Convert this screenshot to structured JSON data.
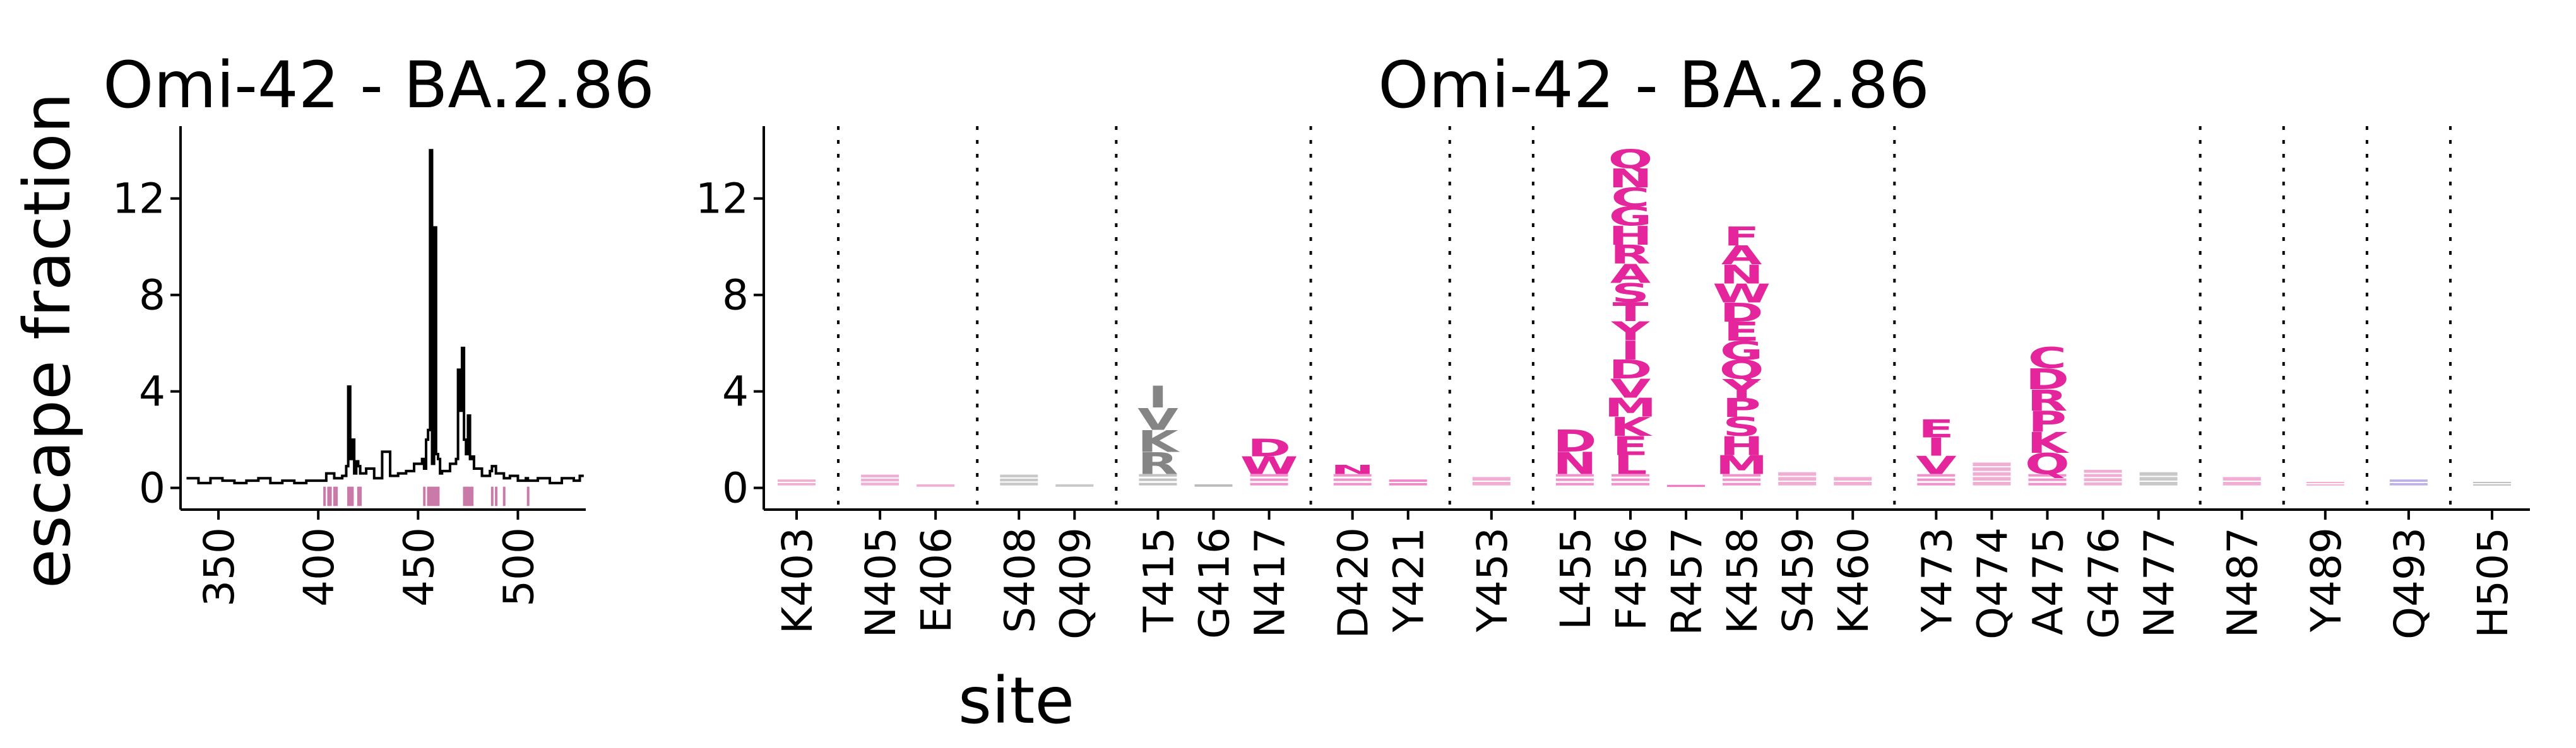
{
  "chart_data": [
    {
      "type": "line",
      "title": "Omi-42 - BA.2.86",
      "ylabel": "escape fraction",
      "xlabel": "",
      "xlim": [
        331,
        534
      ],
      "ylim": [
        -0.9,
        15
      ],
      "xticks": [
        350,
        400,
        450,
        500
      ],
      "yticks": [
        0,
        4,
        8,
        12
      ],
      "grid": false,
      "legend": "none",
      "line_color": "#000000",
      "strip_color": "#c97aa8",
      "series": [
        {
          "x": [
            334,
            340,
            346,
            352,
            358,
            364,
            370,
            376,
            382,
            388,
            394,
            400,
            404,
            408,
            412,
            414,
            415,
            416,
            417,
            418,
            419,
            420,
            421,
            424,
            428,
            432,
            436,
            440,
            444,
            448,
            452,
            453,
            454,
            455,
            456,
            457,
            458,
            459,
            460,
            461,
            462,
            466,
            469,
            470,
            471,
            472,
            473,
            474,
            475,
            476,
            477,
            478,
            482,
            486,
            487,
            489,
            490,
            493,
            496,
            500,
            504,
            505,
            510,
            516,
            522,
            528,
            531
          ],
          "y": [
            0.4,
            0.2,
            0.4,
            0.3,
            0.2,
            0.3,
            0.4,
            0.2,
            0.3,
            0.2,
            0.3,
            0.3,
            0.6,
            0.4,
            0.5,
            0.9,
            4.2,
            1.2,
            2.0,
            0.6,
            1.1,
            0.9,
            0.6,
            0.8,
            0.4,
            1.5,
            0.5,
            0.6,
            0.7,
            1.0,
            1.2,
            0.8,
            2.0,
            2.4,
            14.0,
            1.0,
            10.8,
            1.4,
            1.2,
            0.6,
            0.7,
            1.0,
            1.2,
            4.9,
            3.2,
            5.8,
            2.0,
            1.4,
            3.0,
            1.2,
            1.3,
            0.8,
            0.5,
            0.7,
            0.9,
            0.6,
            0.6,
            0.4,
            0.5,
            0.3,
            0.4,
            0.3,
            0.4,
            0.2,
            0.4,
            0.3,
            0.5
          ]
        }
      ],
      "highlight_sites": [
        403,
        405,
        406,
        408,
        409,
        415,
        416,
        417,
        420,
        421,
        453,
        455,
        456,
        457,
        458,
        459,
        460,
        473,
        474,
        475,
        476,
        477,
        487,
        489,
        493,
        505
      ]
    },
    {
      "type": "logo",
      "title": "Omi-42 - BA.2.86",
      "xlabel": "site",
      "ylabel": "",
      "ylim": [
        -0.9,
        15
      ],
      "yticks": [
        0,
        4,
        8,
        12
      ],
      "grid": false,
      "categories": [
        "K403",
        "N405",
        "E406",
        "S408",
        "Q409",
        "T415",
        "G416",
        "N417",
        "D420",
        "Y421",
        "Y453",
        "L455",
        "F456",
        "R457",
        "K458",
        "S459",
        "K460",
        "Y473",
        "Q474",
        "A475",
        "G476",
        "N477",
        "N487",
        "Y489",
        "Q493",
        "H505"
      ],
      "group_breaks_after": [
        0,
        2,
        4,
        7,
        9,
        10,
        16,
        21,
        22,
        23,
        24
      ],
      "stacks": [
        {
          "site": "K403",
          "color": "#e66bb0",
          "letters": "",
          "height": 0.3
        },
        {
          "site": "N405",
          "color": "#e66bb0",
          "letters": "",
          "height": 0.5
        },
        {
          "site": "E406",
          "color": "#e66bb0",
          "letters": "",
          "height": 0.1
        },
        {
          "site": "S408",
          "color": "#9a9a9a",
          "letters": "",
          "height": 0.5
        },
        {
          "site": "Q409",
          "color": "#9a9a9a",
          "letters": "",
          "height": 0.1
        },
        {
          "site": "T415",
          "color": "#858585",
          "letters": "IVKR",
          "height": 4.2
        },
        {
          "site": "G416",
          "color": "#858585",
          "letters": "",
          "height": 0.1
        },
        {
          "site": "N417",
          "color": "#e4259b",
          "letters": "DW",
          "height": 2.0
        },
        {
          "site": "D420",
          "color": "#e4259b",
          "letters": "N",
          "height": 0.9
        },
        {
          "site": "Y421",
          "color": "#e4259b",
          "letters": "",
          "height": 0.3
        },
        {
          "site": "Y453",
          "color": "#e66bb0",
          "letters": "",
          "height": 0.4
        },
        {
          "site": "L455",
          "color": "#e4259b",
          "letters": "DN",
          "height": 2.4
        },
        {
          "site": "F456",
          "color": "#e4259b",
          "letters": "QNCGHRASTYIDVMKEL",
          "height": 14.0
        },
        {
          "site": "R457",
          "color": "#e4259b",
          "letters": "",
          "height": 0.0
        },
        {
          "site": "K458",
          "color": "#e4259b",
          "letters": "FANWDEGQYPSHM",
          "height": 10.8
        },
        {
          "site": "S459",
          "color": "#e66bb0",
          "letters": "",
          "height": 0.6
        },
        {
          "site": "K460",
          "color": "#e66bb0",
          "letters": "",
          "height": 0.4
        },
        {
          "site": "Y473",
          "color": "#e4259b",
          "letters": "EIV",
          "height": 2.8
        },
        {
          "site": "Q474",
          "color": "#e66bb0",
          "letters": "",
          "height": 1.0
        },
        {
          "site": "A475",
          "color": "#e4259b",
          "letters": "CDRPKQ",
          "height": 5.8
        },
        {
          "site": "G476",
          "color": "#e66bb0",
          "letters": "",
          "height": 0.7
        },
        {
          "site": "N477",
          "color": "#9a9a9a",
          "letters": "",
          "height": 0.6
        },
        {
          "site": "N487",
          "color": "#e66bb0",
          "letters": "",
          "height": 0.4
        },
        {
          "site": "Y489",
          "color": "#e66bb0",
          "letters": "",
          "height": 0.2
        },
        {
          "site": "Q493",
          "color": "#8c6fd6",
          "letters": "",
          "height": 0.3
        },
        {
          "site": "H505",
          "color": "#8a8a8a",
          "letters": "",
          "height": 0.2
        }
      ]
    }
  ]
}
